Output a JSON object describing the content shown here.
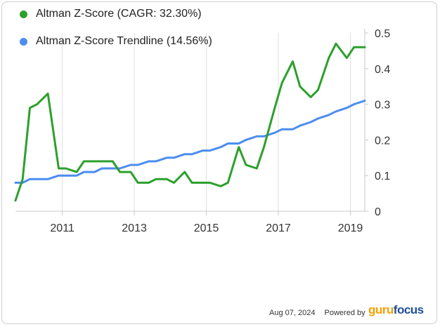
{
  "chart_data": {
    "type": "line",
    "series": [
      {
        "name": "Altman Z-Score (CAGR: 32.30%)",
        "color": "#2ca02c",
        "points": [
          {
            "x": 2009.7,
            "y": 0.03
          },
          {
            "x": 2009.9,
            "y": 0.09
          },
          {
            "x": 2010.1,
            "y": 0.29
          },
          {
            "x": 2010.3,
            "y": 0.3
          },
          {
            "x": 2010.6,
            "y": 0.33
          },
          {
            "x": 2010.9,
            "y": 0.12
          },
          {
            "x": 2011.1,
            "y": 0.12
          },
          {
            "x": 2011.4,
            "y": 0.11
          },
          {
            "x": 2011.6,
            "y": 0.14
          },
          {
            "x": 2011.9,
            "y": 0.14
          },
          {
            "x": 2012.1,
            "y": 0.14
          },
          {
            "x": 2012.4,
            "y": 0.14
          },
          {
            "x": 2012.6,
            "y": 0.11
          },
          {
            "x": 2012.9,
            "y": 0.11
          },
          {
            "x": 2013.1,
            "y": 0.08
          },
          {
            "x": 2013.4,
            "y": 0.08
          },
          {
            "x": 2013.6,
            "y": 0.09
          },
          {
            "x": 2013.9,
            "y": 0.09
          },
          {
            "x": 2014.1,
            "y": 0.08
          },
          {
            "x": 2014.4,
            "y": 0.11
          },
          {
            "x": 2014.6,
            "y": 0.08
          },
          {
            "x": 2014.9,
            "y": 0.08
          },
          {
            "x": 2015.1,
            "y": 0.08
          },
          {
            "x": 2015.4,
            "y": 0.07
          },
          {
            "x": 2015.6,
            "y": 0.08
          },
          {
            "x": 2015.9,
            "y": 0.18
          },
          {
            "x": 2016.1,
            "y": 0.13
          },
          {
            "x": 2016.4,
            "y": 0.12
          },
          {
            "x": 2016.6,
            "y": 0.18
          },
          {
            "x": 2016.9,
            "y": 0.29
          },
          {
            "x": 2017.1,
            "y": 0.36
          },
          {
            "x": 2017.4,
            "y": 0.42
          },
          {
            "x": 2017.6,
            "y": 0.35
          },
          {
            "x": 2017.9,
            "y": 0.32
          },
          {
            "x": 2018.1,
            "y": 0.34
          },
          {
            "x": 2018.4,
            "y": 0.43
          },
          {
            "x": 2018.6,
            "y": 0.47
          },
          {
            "x": 2018.9,
            "y": 0.43
          },
          {
            "x": 2019.1,
            "y": 0.46
          },
          {
            "x": 2019.4,
            "y": 0.46
          }
        ]
      },
      {
        "name": "Altman Z-Score Trendline (14.56%)",
        "color": "#4b8df0",
        "points": [
          {
            "x": 2009.7,
            "y": 0.08
          },
          {
            "x": 2009.9,
            "y": 0.08
          },
          {
            "x": 2010.1,
            "y": 0.09
          },
          {
            "x": 2010.6,
            "y": 0.09
          },
          {
            "x": 2010.9,
            "y": 0.1
          },
          {
            "x": 2011.4,
            "y": 0.1
          },
          {
            "x": 2011.6,
            "y": 0.11
          },
          {
            "x": 2011.9,
            "y": 0.11
          },
          {
            "x": 2012.1,
            "y": 0.12
          },
          {
            "x": 2012.6,
            "y": 0.12
          },
          {
            "x": 2012.9,
            "y": 0.13
          },
          {
            "x": 2013.1,
            "y": 0.13
          },
          {
            "x": 2013.4,
            "y": 0.14
          },
          {
            "x": 2013.6,
            "y": 0.14
          },
          {
            "x": 2013.9,
            "y": 0.15
          },
          {
            "x": 2014.1,
            "y": 0.15
          },
          {
            "x": 2014.4,
            "y": 0.16
          },
          {
            "x": 2014.6,
            "y": 0.16
          },
          {
            "x": 2014.9,
            "y": 0.17
          },
          {
            "x": 2015.1,
            "y": 0.17
          },
          {
            "x": 2015.4,
            "y": 0.18
          },
          {
            "x": 2015.6,
            "y": 0.19
          },
          {
            "x": 2015.9,
            "y": 0.19
          },
          {
            "x": 2016.1,
            "y": 0.2
          },
          {
            "x": 2016.4,
            "y": 0.21
          },
          {
            "x": 2016.6,
            "y": 0.21
          },
          {
            "x": 2016.9,
            "y": 0.22
          },
          {
            "x": 2017.1,
            "y": 0.23
          },
          {
            "x": 2017.4,
            "y": 0.23
          },
          {
            "x": 2017.6,
            "y": 0.24
          },
          {
            "x": 2017.9,
            "y": 0.25
          },
          {
            "x": 2018.1,
            "y": 0.26
          },
          {
            "x": 2018.4,
            "y": 0.27
          },
          {
            "x": 2018.6,
            "y": 0.28
          },
          {
            "x": 2018.9,
            "y": 0.29
          },
          {
            "x": 2019.1,
            "y": 0.3
          },
          {
            "x": 2019.4,
            "y": 0.31
          }
        ]
      }
    ],
    "x_ticks": [
      "2011",
      "2013",
      "2015",
      "2017",
      "2019"
    ],
    "y_ticks": [
      "0",
      "0.1",
      "0.2",
      "0.3",
      "0.4",
      "0.5"
    ],
    "xlim": [
      2009.7,
      2019.4
    ],
    "ylim": [
      0,
      0.5
    ],
    "grid": "vertical",
    "legend_placement": "top-left",
    "title": "",
    "xlabel": "",
    "ylabel": ""
  },
  "footer": {
    "date": "Aug 07, 2024",
    "powered_by": "Powered by",
    "brand_part1": "guru",
    "brand_part2": "focus",
    "brand_color1": "#f5a000",
    "brand_color2": "#1f4e96"
  }
}
